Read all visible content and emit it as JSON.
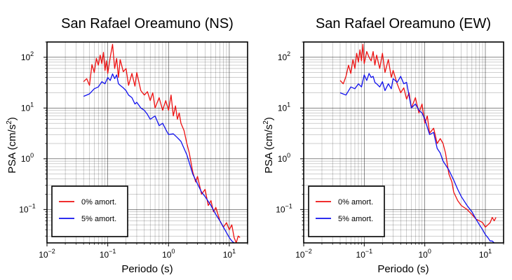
{
  "chart_data": [
    {
      "type": "line",
      "title": "San Rafael Oreamuno (NS)",
      "xlabel": "Periodo (s)",
      "ylabel_base": "PSA (cm/s",
      "ylabel_sup": "2",
      "ylabel_close": ")",
      "xscale": "log",
      "yscale": "log",
      "xlim": [
        0.01,
        20
      ],
      "ylim": [
        0.022,
        200
      ],
      "grid": true,
      "legend_position": "bottom-left",
      "xticks": [
        {
          "value": 0.01,
          "base": "10",
          "exp": "−2"
        },
        {
          "value": 0.1,
          "base": "10",
          "exp": "−1"
        },
        {
          "value": 1,
          "base": "10",
          "exp": "0"
        },
        {
          "value": 10,
          "base": "10",
          "exp": "1"
        }
      ],
      "yticks": [
        {
          "value": 0.1,
          "base": "10",
          "exp": "−1"
        },
        {
          "value": 1,
          "base": "10",
          "exp": "0"
        },
        {
          "value": 10,
          "base": "10",
          "exp": "1"
        },
        {
          "value": 100,
          "base": "10",
          "exp": "2"
        }
      ],
      "series": [
        {
          "name": "0% amort.",
          "color": "#ee1111",
          "x": [
            0.04,
            0.045,
            0.05,
            0.055,
            0.06,
            0.065,
            0.07,
            0.075,
            0.08,
            0.085,
            0.09,
            0.095,
            0.1,
            0.11,
            0.12,
            0.13,
            0.14,
            0.15,
            0.16,
            0.18,
            0.2,
            0.22,
            0.25,
            0.28,
            0.3,
            0.35,
            0.4,
            0.45,
            0.5,
            0.55,
            0.6,
            0.7,
            0.8,
            0.9,
            1.0,
            1.1,
            1.2,
            1.3,
            1.4,
            1.5,
            1.6,
            1.8,
            2.0,
            2.2,
            2.5,
            2.8,
            3.0,
            3.5,
            4.0,
            4.5,
            5.0,
            5.5,
            6.0,
            7.0,
            8.0,
            9.0,
            10.0,
            11.0,
            12.0,
            13.0,
            14.0,
            15.0
          ],
          "y": [
            33,
            38,
            28,
            72,
            50,
            95,
            70,
            110,
            75,
            125,
            55,
            85,
            48,
            100,
            180,
            60,
            95,
            40,
            90,
            52,
            60,
            28,
            48,
            27,
            50,
            22,
            18,
            21,
            14,
            20,
            10,
            16,
            9,
            14,
            9,
            18,
            7,
            11,
            6,
            8,
            5,
            3.6,
            2,
            1.3,
            0.55,
            0.35,
            0.45,
            0.2,
            0.25,
            0.12,
            0.15,
            0.09,
            0.11,
            0.06,
            0.045,
            0.055,
            0.04,
            0.05,
            0.028,
            0.022,
            0.03,
            0.028
          ]
        },
        {
          "name": "5% amort.",
          "color": "#1111ee",
          "x": [
            0.04,
            0.05,
            0.06,
            0.07,
            0.08,
            0.09,
            0.1,
            0.11,
            0.12,
            0.13,
            0.14,
            0.15,
            0.16,
            0.18,
            0.2,
            0.22,
            0.25,
            0.28,
            0.3,
            0.35,
            0.4,
            0.45,
            0.5,
            0.6,
            0.7,
            0.8,
            0.9,
            1.0,
            1.2,
            1.4,
            1.6,
            1.8,
            2.0,
            2.5,
            3.0,
            3.5,
            4.0,
            5.0,
            6.0,
            7.0,
            8.0,
            9.0,
            10.0,
            11.0,
            12.0
          ],
          "y": [
            17,
            19,
            24,
            26,
            33,
            30,
            40,
            35,
            47,
            38,
            45,
            30,
            28,
            25,
            22,
            18,
            16,
            12,
            13,
            10,
            9,
            7.5,
            6,
            7,
            4.5,
            5,
            3.8,
            3,
            3.1,
            2.6,
            2.2,
            1.6,
            1.2,
            0.5,
            0.32,
            0.22,
            0.18,
            0.12,
            0.08,
            0.06,
            0.045,
            0.035,
            0.028,
            0.024,
            0.022
          ]
        }
      ]
    },
    {
      "type": "line",
      "title": "San Rafael Oreamuno (EW)",
      "xlabel": "Periodo (s)",
      "ylabel_base": "PSA (cm/s",
      "ylabel_sup": "2",
      "ylabel_close": ")",
      "xscale": "log",
      "yscale": "log",
      "xlim": [
        0.01,
        20
      ],
      "ylim": [
        0.022,
        200
      ],
      "grid": true,
      "legend_position": "bottom-left",
      "xticks": [
        {
          "value": 0.01,
          "base": "10",
          "exp": "−2"
        },
        {
          "value": 0.1,
          "base": "10",
          "exp": "−1"
        },
        {
          "value": 1,
          "base": "10",
          "exp": "0"
        },
        {
          "value": 10,
          "base": "10",
          "exp": "1"
        }
      ],
      "yticks": [
        {
          "value": 0.1,
          "base": "10",
          "exp": "−1"
        },
        {
          "value": 1,
          "base": "10",
          "exp": "0"
        },
        {
          "value": 10,
          "base": "10",
          "exp": "1"
        },
        {
          "value": 100,
          "base": "10",
          "exp": "2"
        }
      ],
      "series": [
        {
          "name": "0% amort.",
          "color": "#ee1111",
          "x": [
            0.04,
            0.045,
            0.05,
            0.055,
            0.06,
            0.065,
            0.07,
            0.075,
            0.08,
            0.085,
            0.09,
            0.095,
            0.1,
            0.11,
            0.12,
            0.13,
            0.14,
            0.15,
            0.16,
            0.18,
            0.2,
            0.22,
            0.25,
            0.28,
            0.3,
            0.35,
            0.4,
            0.45,
            0.5,
            0.55,
            0.6,
            0.7,
            0.8,
            0.9,
            1.0,
            1.1,
            1.2,
            1.4,
            1.6,
            1.8,
            2.0,
            2.2,
            2.5,
            2.8,
            3.0,
            3.5,
            4.0,
            5.0,
            6.0,
            7.0,
            8.0,
            9.0,
            10.0,
            11.0,
            12.0,
            13.0,
            14.0,
            15.0
          ],
          "y": [
            35,
            30,
            42,
            70,
            48,
            90,
            60,
            120,
            80,
            140,
            85,
            180,
            75,
            130,
            100,
            85,
            130,
            70,
            110,
            60,
            120,
            50,
            90,
            40,
            55,
            30,
            20,
            25,
            15,
            20,
            10,
            16,
            8,
            12,
            5,
            7,
            3.2,
            4,
            2,
            2.5,
            2,
            1.3,
            0.5,
            0.35,
            0.22,
            0.15,
            0.12,
            0.1,
            0.08,
            0.065,
            0.06,
            0.055,
            0.045,
            0.05,
            0.055,
            0.07,
            0.06,
            0.07
          ]
        },
        {
          "name": "5% amort.",
          "color": "#1111ee",
          "x": [
            0.04,
            0.05,
            0.06,
            0.07,
            0.08,
            0.09,
            0.1,
            0.11,
            0.12,
            0.13,
            0.14,
            0.15,
            0.16,
            0.18,
            0.2,
            0.22,
            0.25,
            0.28,
            0.3,
            0.35,
            0.4,
            0.45,
            0.5,
            0.6,
            0.7,
            0.8,
            0.9,
            1.0,
            1.2,
            1.4,
            1.6,
            1.8,
            2.0,
            2.5,
            3.0,
            3.5,
            4.0,
            5.0,
            6.0,
            7.0,
            8.0,
            9.0,
            10.0,
            11.0,
            12.0,
            13.0,
            14.0
          ],
          "y": [
            20,
            18,
            26,
            24,
            30,
            26,
            45,
            35,
            48,
            40,
            42,
            32,
            30,
            26,
            33,
            22,
            30,
            24,
            38,
            32,
            42,
            30,
            32,
            10,
            12,
            9,
            8,
            6,
            3,
            3.3,
            1.6,
            1.3,
            0.9,
            0.6,
            0.38,
            0.25,
            0.18,
            0.12,
            0.09,
            0.065,
            0.05,
            0.04,
            0.032,
            0.028,
            0.024,
            0.024,
            0.022
          ]
        }
      ]
    }
  ]
}
